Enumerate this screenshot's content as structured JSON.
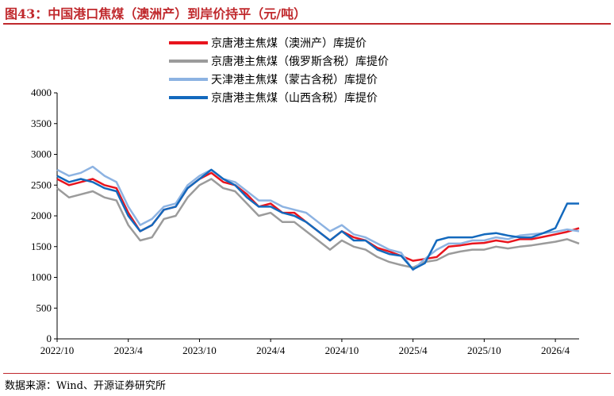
{
  "header": {
    "title": "图43：中国港口焦煤（澳洲产）到岸价持平（元/吨）"
  },
  "footer": {
    "source": "数据来源：Wind、开源证券研究所"
  },
  "chart_data": {
    "type": "line",
    "title": "",
    "xlabel": "",
    "ylabel": "",
    "x_ticks": [
      "2022/10",
      "2023/4",
      "2023/10",
      "2024/4",
      "2024/10",
      "2025/4",
      "2025/10",
      "2026/4"
    ],
    "y_ticks": [
      0,
      500,
      1000,
      1500,
      2000,
      2500,
      3000,
      3500,
      4000
    ],
    "ylim": [
      0,
      4000
    ],
    "xlim": [
      "2022/10",
      "2026/6"
    ],
    "grid": false,
    "legend_position": "top-right",
    "x": [
      "2022/10",
      "2022/11",
      "2022/12",
      "2023/1",
      "2023/2",
      "2023/3",
      "2023/4",
      "2023/5",
      "2023/6",
      "2023/7",
      "2023/8",
      "2023/9",
      "2023/10",
      "2023/11",
      "2023/12",
      "2024/1",
      "2024/2",
      "2024/3",
      "2024/4",
      "2024/5",
      "2024/6",
      "2024/7",
      "2024/8",
      "2024/9",
      "2024/10",
      "2024/11",
      "2024/12",
      "2025/1",
      "2025/2",
      "2025/3",
      "2025/4",
      "2025/5",
      "2025/6",
      "2025/7",
      "2025/8",
      "2025/9",
      "2025/10",
      "2025/11",
      "2025/12",
      "2026/1",
      "2026/2",
      "2026/3",
      "2026/4",
      "2026/5",
      "2026/6"
    ],
    "series": [
      {
        "name": "京唐港主焦煤（澳洲产）库提价",
        "color": "#e8141d",
        "values": [
          2600,
          2500,
          2550,
          2600,
          2500,
          2450,
          2050,
          1750,
          1850,
          2100,
          2150,
          2450,
          2600,
          2700,
          2550,
          2500,
          2350,
          2150,
          2200,
          2050,
          2050,
          1900,
          1750,
          1600,
          1750,
          1650,
          1600,
          1480,
          1420,
          1350,
          1270,
          1300,
          1330,
          1500,
          1520,
          1550,
          1560,
          1600,
          1570,
          1620,
          1620,
          1660,
          1700,
          1740,
          1800
        ]
      },
      {
        "name": "京唐港主焦煤（俄罗斯含税）库提价",
        "color": "#9b9b9b",
        "values": [
          2450,
          2300,
          2350,
          2400,
          2300,
          2250,
          1850,
          1600,
          1650,
          1950,
          2000,
          2300,
          2500,
          2600,
          2450,
          2400,
          2200,
          2000,
          2050,
          1900,
          1900,
          1750,
          1600,
          1450,
          1600,
          1500,
          1450,
          1330,
          1250,
          1200,
          1160,
          1250,
          1280,
          1380,
          1420,
          1450,
          1450,
          1500,
          1470,
          1500,
          1520,
          1550,
          1580,
          1620,
          1550
        ]
      },
      {
        "name": "天津港主焦煤（蒙古含税）库提价",
        "color": "#8db3e2",
        "values": [
          2750,
          2650,
          2700,
          2800,
          2650,
          2550,
          2150,
          1850,
          1950,
          2150,
          2200,
          2500,
          2650,
          2750,
          2600,
          2550,
          2400,
          2250,
          2250,
          2150,
          2100,
          2050,
          1900,
          1750,
          1850,
          1700,
          1650,
          1550,
          1450,
          1400,
          1120,
          1300,
          1450,
          1550,
          1550,
          1600,
          1600,
          1650,
          1620,
          1680,
          1700,
          1720,
          1740,
          1780,
          1750
        ]
      },
      {
        "name": "京唐港主焦煤（山西含税）库提价",
        "color": "#1369bd",
        "values": [
          2650,
          2550,
          2600,
          2550,
          2450,
          2400,
          2000,
          1750,
          1850,
          2100,
          2150,
          2450,
          2600,
          2750,
          2600,
          2500,
          2300,
          2150,
          2150,
          2050,
          2000,
          1900,
          1750,
          1600,
          1750,
          1600,
          1600,
          1450,
          1380,
          1350,
          1130,
          1230,
          1600,
          1650,
          1650,
          1650,
          1700,
          1720,
          1680,
          1650,
          1650,
          1720,
          1800,
          2200,
          2200
        ]
      }
    ]
  }
}
